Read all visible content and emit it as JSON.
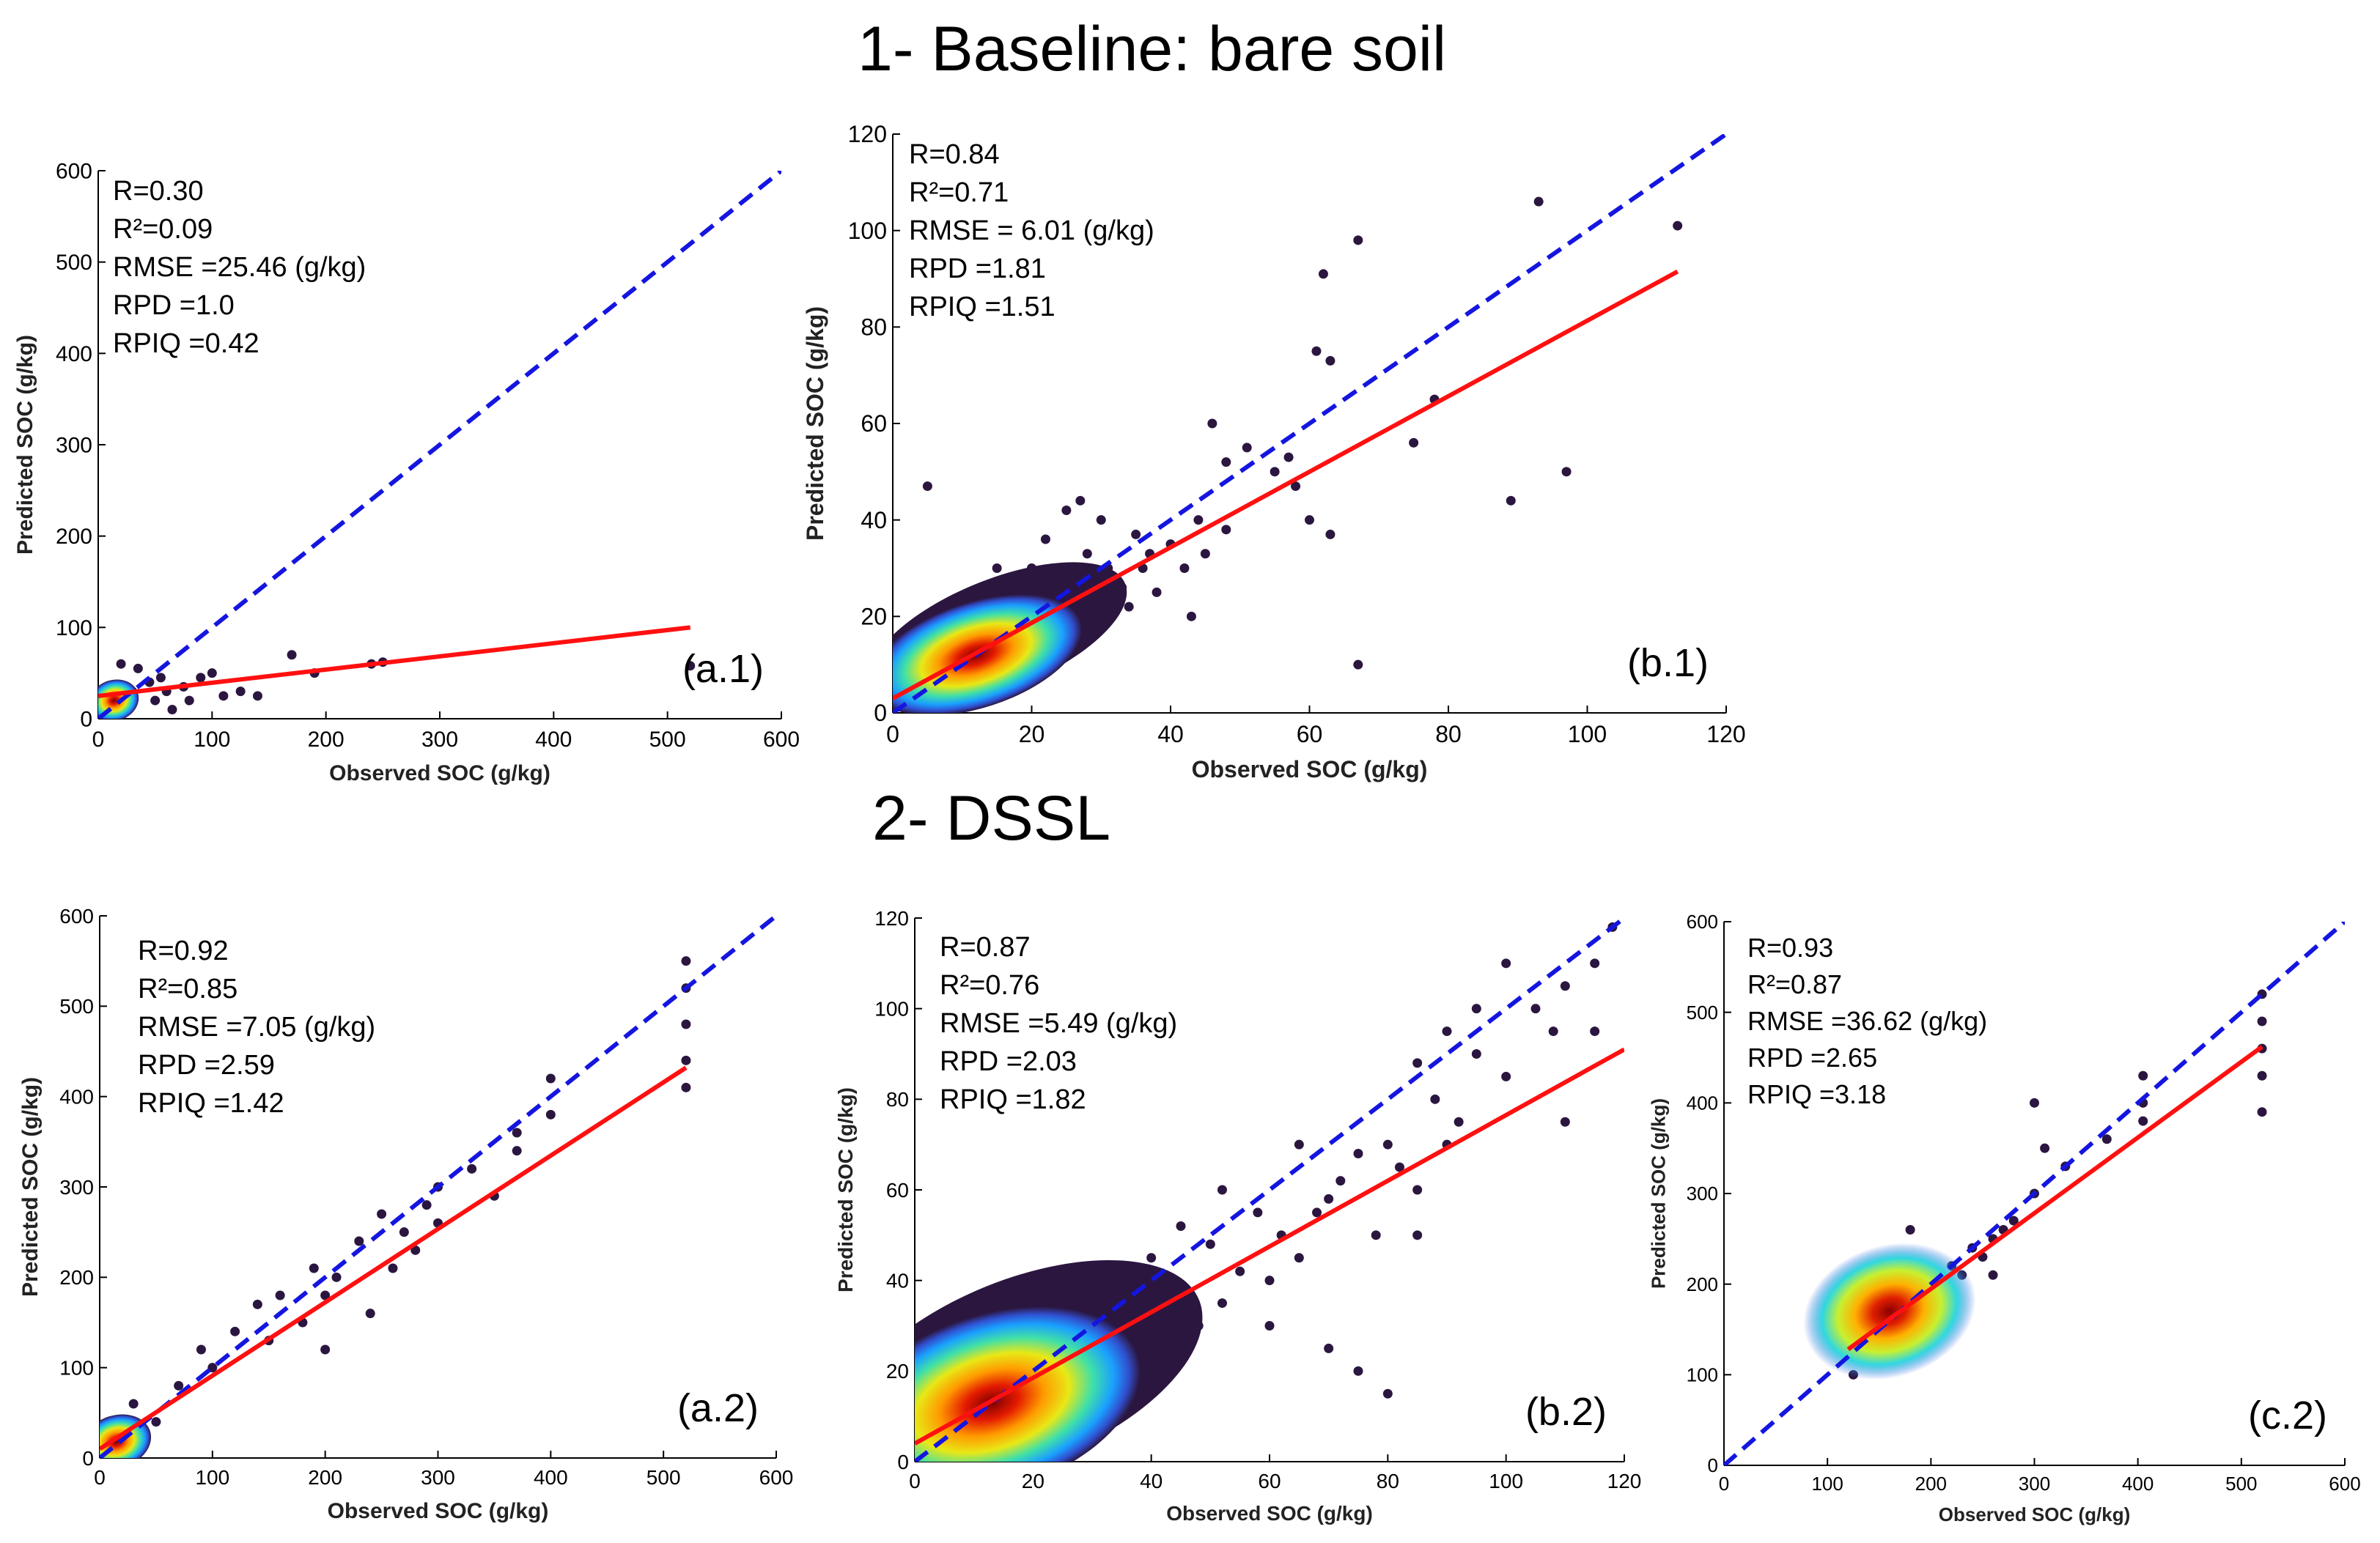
{
  "section_titles": {
    "baseline": "1- Baseline: bare soil",
    "dssl": "2- DSSL"
  },
  "colors": {
    "identity_line": "#1515e0",
    "fit_line": "#ff1010",
    "points_low_density": "#2b1640"
  },
  "chart_data": [
    {
      "id": "a1",
      "type": "scatter",
      "panel_label": "(a.1)",
      "xlabel": "Observed SOC (g/kg)",
      "ylabel": "Predicted SOC (g/kg)",
      "xlim": [
        0,
        600
      ],
      "ylim": [
        0,
        600
      ],
      "xticks": [
        0,
        100,
        200,
        300,
        400,
        500,
        600
      ],
      "yticks": [
        0,
        100,
        200,
        300,
        400,
        500,
        600
      ],
      "stats": [
        "R=0.30",
        "R²=0.09",
        "RMSE =25.46 (g/kg)",
        "RPD =1.0",
        "RPIQ =0.42"
      ],
      "identity_line": [
        [
          0,
          0
        ],
        [
          600,
          600
        ]
      ],
      "fit_line": [
        [
          0,
          25
        ],
        [
          520,
          100
        ]
      ],
      "density_center": [
        14,
        20
      ],
      "points": [
        [
          20,
          60
        ],
        [
          35,
          55
        ],
        [
          45,
          40
        ],
        [
          55,
          45
        ],
        [
          65,
          10
        ],
        [
          75,
          35
        ],
        [
          90,
          45
        ],
        [
          100,
          50
        ],
        [
          110,
          25
        ],
        [
          125,
          30
        ],
        [
          140,
          25
        ],
        [
          170,
          70
        ],
        [
          190,
          50
        ],
        [
          240,
          60
        ],
        [
          250,
          62
        ],
        [
          520,
          58
        ],
        [
          30,
          30
        ],
        [
          50,
          20
        ],
        [
          80,
          20
        ],
        [
          60,
          30
        ]
      ]
    },
    {
      "id": "b1",
      "type": "scatter",
      "panel_label": "(b.1)",
      "xlabel": "Observed SOC (g/kg)",
      "ylabel": "Predicted SOC (g/kg)",
      "xlim": [
        0,
        120
      ],
      "ylim": [
        0,
        120
      ],
      "xticks": [
        0,
        20,
        40,
        60,
        80,
        100,
        120
      ],
      "yticks": [
        0,
        20,
        40,
        60,
        80,
        100,
        120
      ],
      "stats": [
        "R=0.84",
        "R²=0.71",
        "RMSE = 6.01 (g/kg)",
        "RPD =1.81",
        "RPIQ =1.51"
      ],
      "identity_line": [
        [
          0,
          0
        ],
        [
          120,
          120
        ]
      ],
      "fit_line": [
        [
          0,
          3
        ],
        [
          113,
          91.5
        ]
      ],
      "density_center": [
        12,
        12
      ],
      "points": [
        [
          113,
          101
        ],
        [
          93,
          106
        ],
        [
          67,
          98
        ],
        [
          62,
          91
        ],
        [
          61,
          75
        ],
        [
          63,
          73
        ],
        [
          57,
          53
        ],
        [
          55,
          50
        ],
        [
          51,
          55
        ],
        [
          48,
          52
        ],
        [
          46,
          60
        ],
        [
          44,
          40
        ],
        [
          42,
          30
        ],
        [
          43,
          20
        ],
        [
          37,
          33
        ],
        [
          35,
          37
        ],
        [
          30,
          40
        ],
        [
          27,
          44
        ],
        [
          25,
          42
        ],
        [
          5,
          47
        ],
        [
          58,
          47
        ],
        [
          60,
          40
        ],
        [
          63,
          37
        ],
        [
          67,
          10
        ],
        [
          75,
          56
        ],
        [
          78,
          65
        ],
        [
          89,
          44
        ],
        [
          97,
          50
        ],
        [
          40,
          35
        ],
        [
          38,
          25
        ],
        [
          36,
          30
        ],
        [
          33,
          26
        ],
        [
          28,
          33
        ],
        [
          26,
          28
        ],
        [
          22,
          36
        ],
        [
          20,
          30
        ],
        [
          18,
          25
        ],
        [
          10,
          24
        ],
        [
          8,
          22
        ],
        [
          15,
          30
        ],
        [
          22,
          22
        ],
        [
          31,
          30
        ],
        [
          48,
          38
        ],
        [
          45,
          33
        ],
        [
          34,
          22
        ],
        [
          29,
          18
        ]
      ]
    },
    {
      "id": "a2",
      "type": "scatter",
      "panel_label": "(a.2)",
      "xlabel": "Observed SOC (g/kg)",
      "ylabel": "Predicted SOC (g/kg)",
      "xlim": [
        0,
        600
      ],
      "ylim": [
        0,
        600
      ],
      "xticks": [
        0,
        100,
        200,
        300,
        400,
        500,
        600
      ],
      "yticks": [
        0,
        100,
        200,
        300,
        400,
        500,
        600
      ],
      "stats": [
        "R=0.92",
        "R²=0.85",
        "RMSE =7.05 (g/kg)",
        "RPD =2.59",
        "RPIQ =1.42"
      ],
      "identity_line": [
        [
          0,
          0
        ],
        [
          600,
          600
        ]
      ],
      "fit_line": [
        [
          0,
          10
        ],
        [
          520,
          432
        ]
      ],
      "density_center": [
        15,
        18
      ],
      "points": [
        [
          520,
          550
        ],
        [
          520,
          520
        ],
        [
          520,
          480
        ],
        [
          520,
          440
        ],
        [
          520,
          410
        ],
        [
          400,
          420
        ],
        [
          400,
          380
        ],
        [
          370,
          360
        ],
        [
          370,
          340
        ],
        [
          300,
          300
        ],
        [
          300,
          260
        ],
        [
          290,
          280
        ],
        [
          270,
          250
        ],
        [
          260,
          210
        ],
        [
          250,
          270
        ],
        [
          230,
          240
        ],
        [
          210,
          200
        ],
        [
          200,
          180
        ],
        [
          190,
          210
        ],
        [
          180,
          150
        ],
        [
          160,
          180
        ],
        [
          150,
          130
        ],
        [
          140,
          170
        ],
        [
          120,
          140
        ],
        [
          100,
          100
        ],
        [
          90,
          120
        ],
        [
          70,
          80
        ],
        [
          50,
          40
        ],
        [
          30,
          60
        ],
        [
          200,
          120
        ],
        [
          240,
          160
        ],
        [
          280,
          230
        ],
        [
          330,
          320
        ],
        [
          350,
          290
        ]
      ]
    },
    {
      "id": "b2",
      "type": "scatter",
      "panel_label": "(b.2)",
      "xlabel": "Observed SOC (g/kg)",
      "ylabel": "Predicted SOC (g/kg)",
      "xlim": [
        0,
        120
      ],
      "ylim": [
        0,
        120
      ],
      "xticks": [
        0,
        20,
        40,
        60,
        80,
        100,
        120
      ],
      "yticks": [
        0,
        20,
        40,
        60,
        80,
        100,
        120
      ],
      "stats": [
        "R=0.87",
        "R²=0.76",
        "RMSE =5.49 (g/kg)",
        "RPD =2.03",
        "RPIQ =1.82"
      ],
      "identity_line": [
        [
          0,
          0
        ],
        [
          120,
          120
        ]
      ],
      "fit_line": [
        [
          0,
          4
        ],
        [
          120,
          91
        ]
      ],
      "density_center": [
        13,
        13
      ],
      "points": [
        [
          118,
          118
        ],
        [
          115,
          110
        ],
        [
          110,
          105
        ],
        [
          108,
          95
        ],
        [
          105,
          100
        ],
        [
          100,
          85
        ],
        [
          95,
          90
        ],
        [
          92,
          75
        ],
        [
          90,
          70
        ],
        [
          88,
          80
        ],
        [
          85,
          60
        ],
        [
          82,
          65
        ],
        [
          80,
          70
        ],
        [
          78,
          50
        ],
        [
          75,
          68
        ],
        [
          72,
          62
        ],
        [
          70,
          58
        ],
        [
          68,
          55
        ],
        [
          65,
          45
        ],
        [
          62,
          50
        ],
        [
          60,
          40
        ],
        [
          58,
          55
        ],
        [
          55,
          42
        ],
        [
          52,
          35
        ],
        [
          50,
          48
        ],
        [
          48,
          30
        ],
        [
          45,
          35
        ],
        [
          42,
          40
        ],
        [
          40,
          28
        ],
        [
          38,
          32
        ],
        [
          35,
          25
        ],
        [
          30,
          30
        ],
        [
          25,
          22
        ],
        [
          80,
          15
        ],
        [
          75,
          20
        ],
        [
          70,
          25
        ],
        [
          60,
          30
        ],
        [
          110,
          75
        ],
        [
          115,
          95
        ],
        [
          100,
          110
        ],
        [
          95,
          100
        ],
        [
          90,
          95
        ],
        [
          85,
          88
        ],
        [
          85,
          50
        ],
        [
          65,
          70
        ],
        [
          52,
          60
        ],
        [
          45,
          52
        ],
        [
          40,
          45
        ]
      ]
    },
    {
      "id": "c2",
      "type": "scatter",
      "panel_label": "(c.2)",
      "xlabel": "Observed SOC (g/kg)",
      "ylabel": "Predicted SOC (g/kg)",
      "xlim": [
        0,
        600
      ],
      "ylim": [
        0,
        600
      ],
      "xticks": [
        0,
        100,
        200,
        300,
        400,
        500,
        600
      ],
      "yticks": [
        0,
        100,
        200,
        300,
        400,
        500,
        600
      ],
      "stats": [
        "R=0.93",
        "R²=0.87",
        "RMSE =36.62 (g/kg)",
        "RPD =2.65",
        "RPIQ =3.18"
      ],
      "identity_line": [
        [
          0,
          0
        ],
        [
          600,
          600
        ]
      ],
      "fit_line": [
        [
          120,
          128
        ],
        [
          520,
          462
        ]
      ],
      "density_center": [
        160,
        170
      ],
      "points": [
        [
          520,
          520
        ],
        [
          520,
          490
        ],
        [
          520,
          460
        ],
        [
          520,
          430
        ],
        [
          520,
          390
        ],
        [
          405,
          430
        ],
        [
          405,
          400
        ],
        [
          405,
          380
        ],
        [
          370,
          360
        ],
        [
          330,
          330
        ],
        [
          310,
          350
        ],
        [
          300,
          300
        ],
        [
          300,
          400
        ],
        [
          280,
          270
        ],
        [
          260,
          250
        ],
        [
          260,
          210
        ],
        [
          240,
          240
        ],
        [
          220,
          220
        ],
        [
          200,
          190
        ],
        [
          190,
          180
        ],
        [
          180,
          260
        ],
        [
          170,
          180
        ],
        [
          160,
          150
        ],
        [
          150,
          200
        ],
        [
          140,
          140
        ],
        [
          130,
          160
        ],
        [
          125,
          120
        ],
        [
          125,
          100
        ],
        [
          210,
          200
        ],
        [
          230,
          210
        ],
        [
          250,
          230
        ],
        [
          270,
          260
        ]
      ]
    }
  ]
}
